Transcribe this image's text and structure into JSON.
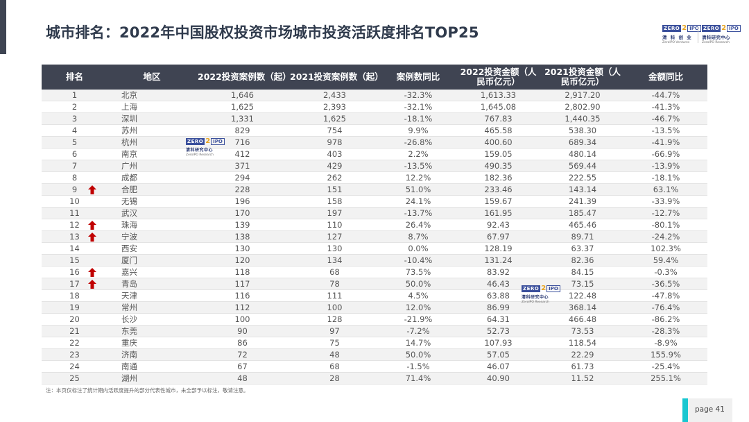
{
  "title": "城市排名：2022年中国股权投资市场城市投资活跃度排名TOP25",
  "logos": {
    "zero": "ZERO",
    "two": "2",
    "ipo": "IPO",
    "header_left_cn": "清 科 创 业",
    "header_left_en": "ZeroIPO Ventures",
    "header_right_cn": "清科研究中心",
    "header_right_en": "ZeroIPO Research",
    "watermark_cn": "清科研究中心",
    "watermark_en": "ZeroIPO Research"
  },
  "table": {
    "headers": [
      "排名",
      "地区",
      "2022投资案例数（起）",
      "2021投资案例数（起）",
      "案例数同比",
      "2022投资金额（人民币亿元）",
      "2021投资金额（人民币亿元）",
      "金额同比"
    ],
    "rows": [
      {
        "rank": "1",
        "city": "北京",
        "c2022": "1,646",
        "c2021": "2,433",
        "cyoy": "-32.3%",
        "a2022": "1,613.33",
        "a2021": "2,917.20",
        "ayoy": "-44.7%",
        "up": false
      },
      {
        "rank": "2",
        "city": "上海",
        "c2022": "1,625",
        "c2021": "2,393",
        "cyoy": "-32.1%",
        "a2022": "1,645.08",
        "a2021": "2,802.90",
        "ayoy": "-41.3%",
        "up": false
      },
      {
        "rank": "3",
        "city": "深圳",
        "c2022": "1,331",
        "c2021": "1,625",
        "cyoy": "-18.1%",
        "a2022": "767.83",
        "a2021": "1,440.35",
        "ayoy": "-46.7%",
        "up": false
      },
      {
        "rank": "4",
        "city": "苏州",
        "c2022": "829",
        "c2021": "754",
        "cyoy": "9.9%",
        "a2022": "465.58",
        "a2021": "538.30",
        "ayoy": "-13.5%",
        "up": false
      },
      {
        "rank": "5",
        "city": "杭州",
        "c2022": "716",
        "c2021": "978",
        "cyoy": "-26.8%",
        "a2022": "400.60",
        "a2021": "689.34",
        "ayoy": "-41.9%",
        "up": false
      },
      {
        "rank": "6",
        "city": "南京",
        "c2022": "412",
        "c2021": "403",
        "cyoy": "2.2%",
        "a2022": "159.05",
        "a2021": "480.14",
        "ayoy": "-66.9%",
        "up": false
      },
      {
        "rank": "7",
        "city": "广州",
        "c2022": "371",
        "c2021": "429",
        "cyoy": "-13.5%",
        "a2022": "490.35",
        "a2021": "569.44",
        "ayoy": "-13.9%",
        "up": false
      },
      {
        "rank": "8",
        "city": "成都",
        "c2022": "294",
        "c2021": "262",
        "cyoy": "12.2%",
        "a2022": "182.36",
        "a2021": "222.55",
        "ayoy": "-18.1%",
        "up": false
      },
      {
        "rank": "9",
        "city": "合肥",
        "c2022": "228",
        "c2021": "151",
        "cyoy": "51.0%",
        "a2022": "233.46",
        "a2021": "143.14",
        "ayoy": "63.1%",
        "up": true
      },
      {
        "rank": "10",
        "city": "无锡",
        "c2022": "196",
        "c2021": "158",
        "cyoy": "24.1%",
        "a2022": "159.67",
        "a2021": "241.39",
        "ayoy": "-33.9%",
        "up": false
      },
      {
        "rank": "11",
        "city": "武汉",
        "c2022": "170",
        "c2021": "197",
        "cyoy": "-13.7%",
        "a2022": "161.95",
        "a2021": "185.47",
        "ayoy": "-12.7%",
        "up": false
      },
      {
        "rank": "12",
        "city": "珠海",
        "c2022": "139",
        "c2021": "110",
        "cyoy": "26.4%",
        "a2022": "92.43",
        "a2021": "465.46",
        "ayoy": "-80.1%",
        "up": true
      },
      {
        "rank": "13",
        "city": "宁波",
        "c2022": "138",
        "c2021": "127",
        "cyoy": "8.7%",
        "a2022": "67.97",
        "a2021": "89.71",
        "ayoy": "-24.2%",
        "up": true
      },
      {
        "rank": "14",
        "city": "西安",
        "c2022": "130",
        "c2021": "130",
        "cyoy": "0.0%",
        "a2022": "128.19",
        "a2021": "63.37",
        "ayoy": "102.3%",
        "up": false
      },
      {
        "rank": "15",
        "city": "厦门",
        "c2022": "120",
        "c2021": "134",
        "cyoy": "-10.4%",
        "a2022": "131.24",
        "a2021": "82.36",
        "ayoy": "59.4%",
        "up": false
      },
      {
        "rank": "16",
        "city": "嘉兴",
        "c2022": "118",
        "c2021": "68",
        "cyoy": "73.5%",
        "a2022": "83.92",
        "a2021": "84.15",
        "ayoy": "-0.3%",
        "up": true
      },
      {
        "rank": "17",
        "city": "青岛",
        "c2022": "117",
        "c2021": "78",
        "cyoy": "50.0%",
        "a2022": "46.43",
        "a2021": "73.15",
        "ayoy": "-36.5%",
        "up": true
      },
      {
        "rank": "18",
        "city": "天津",
        "c2022": "116",
        "c2021": "111",
        "cyoy": "4.5%",
        "a2022": "63.88",
        "a2021": "122.48",
        "ayoy": "-47.8%",
        "up": false
      },
      {
        "rank": "19",
        "city": "常州",
        "c2022": "112",
        "c2021": "100",
        "cyoy": "12.0%",
        "a2022": "86.99",
        "a2021": "368.14",
        "ayoy": "-76.4%",
        "up": false
      },
      {
        "rank": "20",
        "city": "长沙",
        "c2022": "100",
        "c2021": "128",
        "cyoy": "-21.9%",
        "a2022": "64.31",
        "a2021": "466.48",
        "ayoy": "-86.2%",
        "up": false
      },
      {
        "rank": "21",
        "city": "东莞",
        "c2022": "90",
        "c2021": "97",
        "cyoy": "-7.2%",
        "a2022": "52.73",
        "a2021": "73.53",
        "ayoy": "-28.3%",
        "up": false
      },
      {
        "rank": "22",
        "city": "重庆",
        "c2022": "86",
        "c2021": "75",
        "cyoy": "14.7%",
        "a2022": "107.93",
        "a2021": "118.54",
        "ayoy": "-8.9%",
        "up": false
      },
      {
        "rank": "23",
        "city": "济南",
        "c2022": "72",
        "c2021": "48",
        "cyoy": "50.0%",
        "a2022": "57.05",
        "a2021": "22.29",
        "ayoy": "155.9%",
        "up": false
      },
      {
        "rank": "24",
        "city": "南通",
        "c2022": "67",
        "c2021": "68",
        "cyoy": "-1.5%",
        "a2022": "46.07",
        "a2021": "61.73",
        "ayoy": "-25.4%",
        "up": false
      },
      {
        "rank": "25",
        "city": "湖州",
        "c2022": "48",
        "c2021": "28",
        "cyoy": "71.4%",
        "a2022": "40.90",
        "a2021": "11.52",
        "ayoy": "255.1%",
        "up": false
      }
    ]
  },
  "note": "注：本页仅标注了统计期内活跃度提升的部分代表性城市，未全部予以标注，敬请注意。",
  "page": "page  41",
  "colors": {
    "header_bg": "#3f4452",
    "arrow": "#c00000",
    "page_accent": "#19c7d1",
    "logo_blue": "#3a4f9c",
    "logo_orange": "#e8a420"
  }
}
